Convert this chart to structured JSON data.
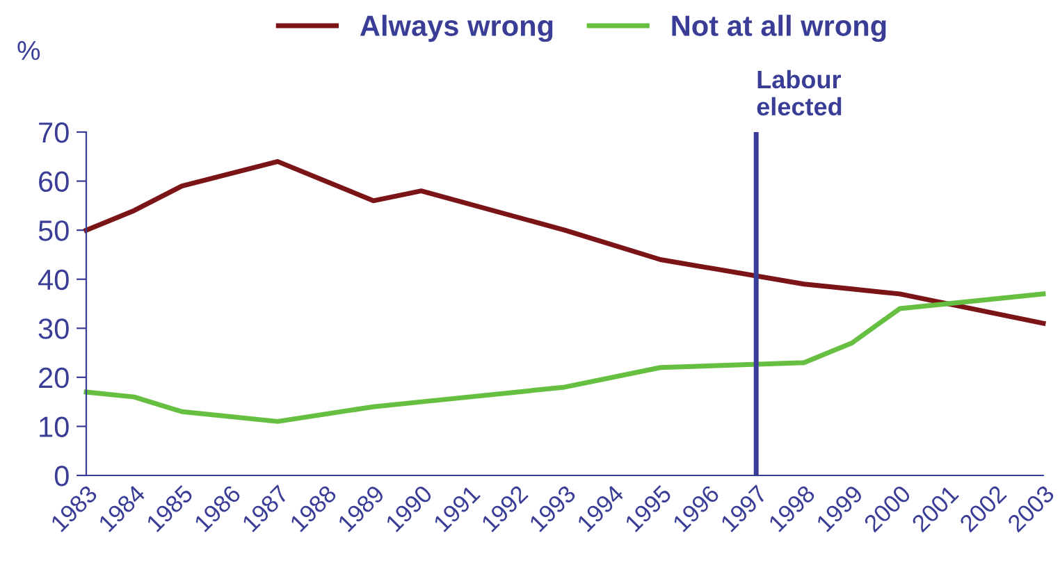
{
  "chart_data": {
    "type": "line",
    "ylabel": "%",
    "categories": [
      "1983",
      "1984",
      "1985",
      "1986",
      "1987",
      "1988",
      "1989",
      "1990",
      "1991",
      "1992",
      "1993",
      "1994",
      "1995",
      "1996",
      "1997",
      "1998",
      "1999",
      "2000",
      "2001",
      "2002",
      "2003"
    ],
    "series": [
      {
        "name": "Always wrong",
        "color": "#7b1416",
        "values": [
          50,
          54,
          59,
          null,
          64,
          null,
          56,
          58,
          null,
          null,
          50,
          null,
          44,
          null,
          null,
          39,
          38,
          37,
          null,
          null,
          31
        ]
      },
      {
        "name": "Not at all wrong",
        "color": "#66bf40",
        "values": [
          17,
          16,
          13,
          null,
          11,
          null,
          14,
          15,
          null,
          null,
          18,
          null,
          22,
          null,
          null,
          23,
          27,
          34,
          null,
          null,
          37
        ]
      }
    ],
    "ylim": [
      0,
      70
    ],
    "yticks": [
      0,
      10,
      20,
      30,
      40,
      50,
      60,
      70
    ],
    "ref_lines": [
      {
        "axis": "x",
        "value": "1997",
        "label": "Labour\nelected",
        "color": "#3a3d96"
      }
    ],
    "grid": false,
    "legend": "top",
    "marker": "none",
    "line_style": "solid"
  }
}
